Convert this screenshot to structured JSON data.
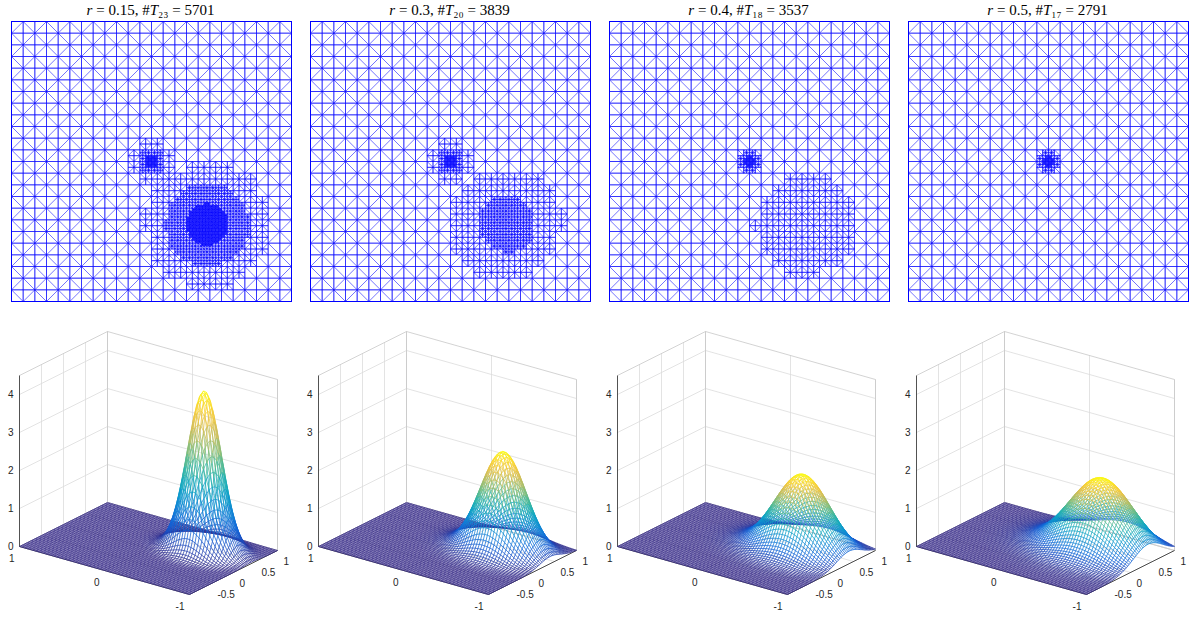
{
  "chart_data": [
    {
      "type": "mesh",
      "title": "r = 0.15,  #T₂₃ = 5701",
      "xlim": [
        -1,
        1
      ],
      "ylim": [
        -1,
        1
      ],
      "tick_labels": false,
      "color": "#0000ff",
      "base_cells": 24,
      "refinement": [
        {
          "x": 0,
          "y": 0,
          "radius": 0.15,
          "levels": 3
        },
        {
          "x": 0.4,
          "y": -0.45,
          "radius": 0.45,
          "levels": 3
        }
      ]
    },
    {
      "type": "mesh",
      "title": "r = 0.3,  #T₂₀ = 3839",
      "xlim": [
        -1,
        1
      ],
      "ylim": [
        -1,
        1
      ],
      "tick_labels": false,
      "color": "#0000ff",
      "base_cells": 24,
      "refinement": [
        {
          "x": 0,
          "y": 0,
          "radius": 0.15,
          "levels": 3
        },
        {
          "x": 0.4,
          "y": -0.45,
          "radius": 0.4,
          "levels": 2
        }
      ]
    },
    {
      "type": "mesh",
      "title": "r = 0.4,  #T₁₈ = 3537",
      "xlim": [
        -1,
        1
      ],
      "ylim": [
        -1,
        1
      ],
      "tick_labels": false,
      "color": "#0000ff",
      "base_cells": 24,
      "refinement": [
        {
          "x": 0,
          "y": 0,
          "radius": 0.13,
          "levels": 3
        },
        {
          "x": 0.4,
          "y": -0.45,
          "radius": 0.36,
          "levels": 1
        }
      ]
    },
    {
      "type": "mesh",
      "title": "r = 0.5,  #T₁₇ = 2791",
      "xlim": [
        -1,
        1
      ],
      "ylim": [
        -1,
        1
      ],
      "tick_labels": false,
      "color": "#0000ff",
      "base_cells": 24,
      "refinement": [
        {
          "x": 0,
          "y": 0,
          "radius": 0.12,
          "levels": 3
        }
      ]
    },
    {
      "type": "surface",
      "xlim": [
        -1,
        1
      ],
      "ylim": [
        -1,
        1
      ],
      "zlim": [
        0,
        4.5
      ],
      "xticks": [
        -0.5,
        0,
        0.5,
        1
      ],
      "yticks": [
        -1,
        0,
        1
      ],
      "zticks": [
        0,
        1,
        2,
        3,
        4
      ],
      "grid": true,
      "peak": {
        "x": 0.4,
        "y": -0.45,
        "value": 4.2,
        "width": 0.18
      }
    },
    {
      "type": "surface",
      "xlim": [
        -1,
        1
      ],
      "ylim": [
        -1,
        1
      ],
      "zlim": [
        0,
        4.5
      ],
      "xticks": [
        -0.5,
        0,
        0.5,
        1
      ],
      "yticks": [
        -1,
        0,
        1
      ],
      "zticks": [
        0,
        1,
        2,
        3,
        4
      ],
      "grid": true,
      "peak": {
        "x": 0.4,
        "y": -0.45,
        "value": 2.6,
        "width": 0.24
      }
    },
    {
      "type": "surface",
      "xlim": [
        -1,
        1
      ],
      "ylim": [
        -1,
        1
      ],
      "zlim": [
        0,
        4.5
      ],
      "xticks": [
        -0.5,
        0,
        0.5,
        1
      ],
      "yticks": [
        -1,
        0,
        1
      ],
      "zticks": [
        0,
        1,
        2,
        3,
        4
      ],
      "grid": true,
      "peak": {
        "x": 0.4,
        "y": -0.45,
        "value": 2.0,
        "width": 0.29
      }
    },
    {
      "type": "surface",
      "xlim": [
        -1,
        1
      ],
      "ylim": [
        -1,
        1
      ],
      "zlim": [
        0,
        4.5
      ],
      "xticks": [
        -0.5,
        0,
        0.5,
        1
      ],
      "yticks": [
        -1,
        0,
        1
      ],
      "zticks": [
        0,
        1,
        2,
        3,
        4
      ],
      "grid": true,
      "peak": {
        "x": 0.4,
        "y": -0.45,
        "value": 1.9,
        "width": 0.34
      }
    }
  ]
}
